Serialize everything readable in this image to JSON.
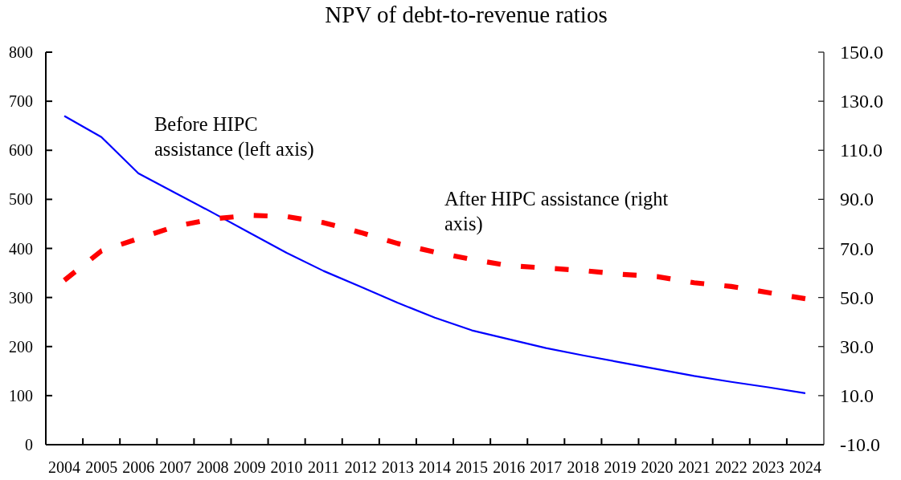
{
  "chart_data": {
    "type": "line",
    "title": "NPV of debt-to-revenue ratios",
    "categories": [
      "2004",
      "2005",
      "2006",
      "2007",
      "2008",
      "2009",
      "2010",
      "2011",
      "2012",
      "2013",
      "2014",
      "2015",
      "2016",
      "2017",
      "2018",
      "2019",
      "2020",
      "2021",
      "2022",
      "2023",
      "2024"
    ],
    "series": [
      {
        "name": "Before HIPC assistance (left axis)",
        "color": "#0000ff",
        "line_style": "solid",
        "values": [
          670,
          627,
          553,
          513,
          473,
          432,
          391,
          354,
          322,
          289,
          259,
          233,
          215,
          197,
          182,
          168,
          154,
          140,
          128,
          117,
          105
        ]
      },
      {
        "name": "After HIPC assistance (right axis)",
        "color": "#ff0000",
        "line_style": "dashed",
        "axis": "y2",
        "values": [
          57,
          69,
          74,
          79,
          82,
          83.5,
          83,
          80.5,
          76.5,
          72,
          68.5,
          65.5,
          63,
          62,
          61,
          59.5,
          58.5,
          56,
          54.5,
          52,
          49.5
        ]
      }
    ],
    "ylim": [
      0,
      800
    ],
    "yticks": [
      0,
      100,
      200,
      300,
      400,
      500,
      600,
      700,
      800
    ],
    "y2lim": [
      -10,
      150
    ],
    "y2ticks": [
      {
        "value": -10,
        "label": "-10.0"
      },
      {
        "value": 10,
        "label": "10.0"
      },
      {
        "value": 30,
        "label": "30.0"
      },
      {
        "value": 50,
        "label": "50.0"
      },
      {
        "value": 70,
        "label": "70.0"
      },
      {
        "value": 90,
        "label": "90.0"
      },
      {
        "value": 110,
        "label": "110.0"
      },
      {
        "value": 130,
        "label": "130.0"
      },
      {
        "value": 150,
        "label": "150.0"
      }
    ]
  }
}
